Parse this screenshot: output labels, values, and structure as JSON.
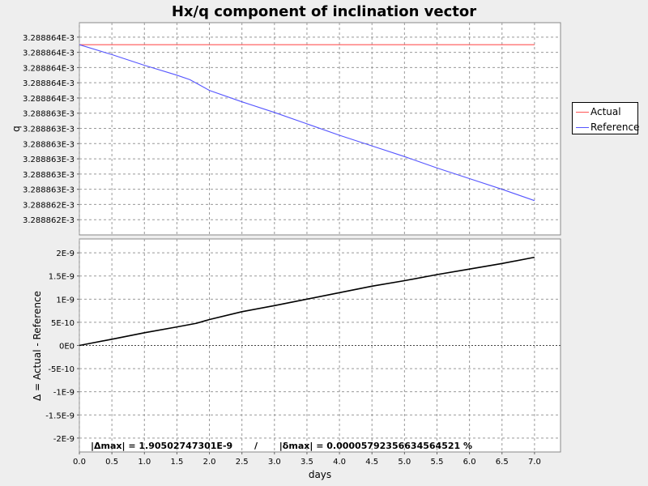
{
  "chart_data": [
    {
      "type": "line",
      "title": "Hx/q component of inclination vector",
      "xlabel": "",
      "ylabel": "q",
      "xlim": [
        0.0,
        7.4
      ],
      "ylim": [
        0.0032888617,
        0.00328886449
      ],
      "x_ticks": [
        0.0,
        0.5,
        1.0,
        1.5,
        2.0,
        2.5,
        3.0,
        3.5,
        4.0,
        4.5,
        5.0,
        5.5,
        6.0,
        6.5,
        7.0
      ],
      "y_ticks": [
        {
          "v": 0.0032888619,
          "label": "3.288862E-3"
        },
        {
          "v": 0.0032888621,
          "label": "3.288862E-3"
        },
        {
          "v": 0.0032888623,
          "label": "3.288863E-3"
        },
        {
          "v": 0.0032888625,
          "label": "3.288863E-3"
        },
        {
          "v": 0.0032888627,
          "label": "3.288863E-3"
        },
        {
          "v": 0.0032888629,
          "label": "3.288863E-3"
        },
        {
          "v": 0.0032888631,
          "label": "3.288863E-3"
        },
        {
          "v": 0.0032888633,
          "label": "3.288863E-3"
        },
        {
          "v": 0.0032888635,
          "label": "3.288864E-3"
        },
        {
          "v": 0.0032888637,
          "label": "3.288864E-3"
        },
        {
          "v": 0.0032888639,
          "label": "3.288864E-3"
        },
        {
          "v": 0.0032888641,
          "label": "3.288864E-3"
        },
        {
          "v": 0.0032888643,
          "label": "3.288864E-3"
        }
      ],
      "grid": true,
      "legend_position": "right",
      "series": [
        {
          "name": "Actual",
          "color": "#ff5555",
          "x": [
            0.0,
            7.0
          ],
          "y": [
            0.0032888642,
            0.0032888642
          ]
        },
        {
          "name": "Reference",
          "color": "#5555ff",
          "x": [
            0.0,
            0.5,
            1.0,
            1.5,
            1.7,
            2.0,
            2.5,
            3.0,
            3.5,
            4.0,
            4.5,
            5.0,
            5.5,
            6.0,
            6.5,
            7.0
          ],
          "y": [
            0.0032888642,
            0.00328886407,
            0.00328886393,
            0.0032888638,
            0.00328886374,
            0.0032888636,
            0.00328886345,
            0.00328886331,
            0.00328886316,
            0.00328886301,
            0.00328886287,
            0.00328886273,
            0.00328886258,
            0.00328886244,
            0.0032888623,
            0.00328886215
          ]
        }
      ]
    },
    {
      "type": "line",
      "title": "",
      "xlabel": "days",
      "ylabel": "Δ = Actual - Reference",
      "xlim": [
        0.0,
        7.4
      ],
      "ylim": [
        -2.3e-09,
        2.3e-09
      ],
      "x_ticks": [
        0.0,
        0.5,
        1.0,
        1.5,
        2.0,
        2.5,
        3.0,
        3.5,
        4.0,
        4.5,
        5.0,
        5.5,
        6.0,
        6.5,
        7.0
      ],
      "x_tick_labels": [
        "0.0",
        "0.5",
        "1.0",
        "1.5",
        "2.0",
        "2.5",
        "3.0",
        "3.5",
        "4.0",
        "4.5",
        "5.0",
        "5.5",
        "6.0",
        "6.5",
        "7.0"
      ],
      "y_ticks": [
        {
          "v": 2e-09,
          "label": "2E-9"
        },
        {
          "v": 1.5e-09,
          "label": "1.5E-9"
        },
        {
          "v": 1e-09,
          "label": "1E-9"
        },
        {
          "v": 5e-10,
          "label": "5E-10"
        },
        {
          "v": 0,
          "label": "0E0"
        },
        {
          "v": -5e-10,
          "label": "-5E-10"
        },
        {
          "v": -1e-09,
          "label": "-1E-9"
        },
        {
          "v": -1.5e-09,
          "label": "-1.5E-9"
        },
        {
          "v": -2e-09,
          "label": "-2E-9"
        }
      ],
      "grid": true,
      "series": [
        {
          "name": "",
          "color": "#000000",
          "x": [
            0.0,
            0.5,
            1.0,
            1.5,
            1.8,
            2.0,
            2.5,
            3.0,
            3.5,
            4.0,
            4.5,
            5.0,
            5.5,
            6.0,
            6.5,
            7.0
          ],
          "y": [
            0.0,
            1.35e-10,
            2.75e-10,
            4e-10,
            4.8e-10,
            5.6e-10,
            7.3e-10,
            8.6e-10,
            1e-09,
            1.14e-09,
            1.28e-09,
            1.4e-09,
            1.53e-09,
            1.65e-09,
            1.77e-09,
            1.905e-09
          ]
        }
      ],
      "annotation": "|Δmax| = 1.90502747301E-9       /       |δmax| = 0.000057923566345645​21 %"
    }
  ]
}
